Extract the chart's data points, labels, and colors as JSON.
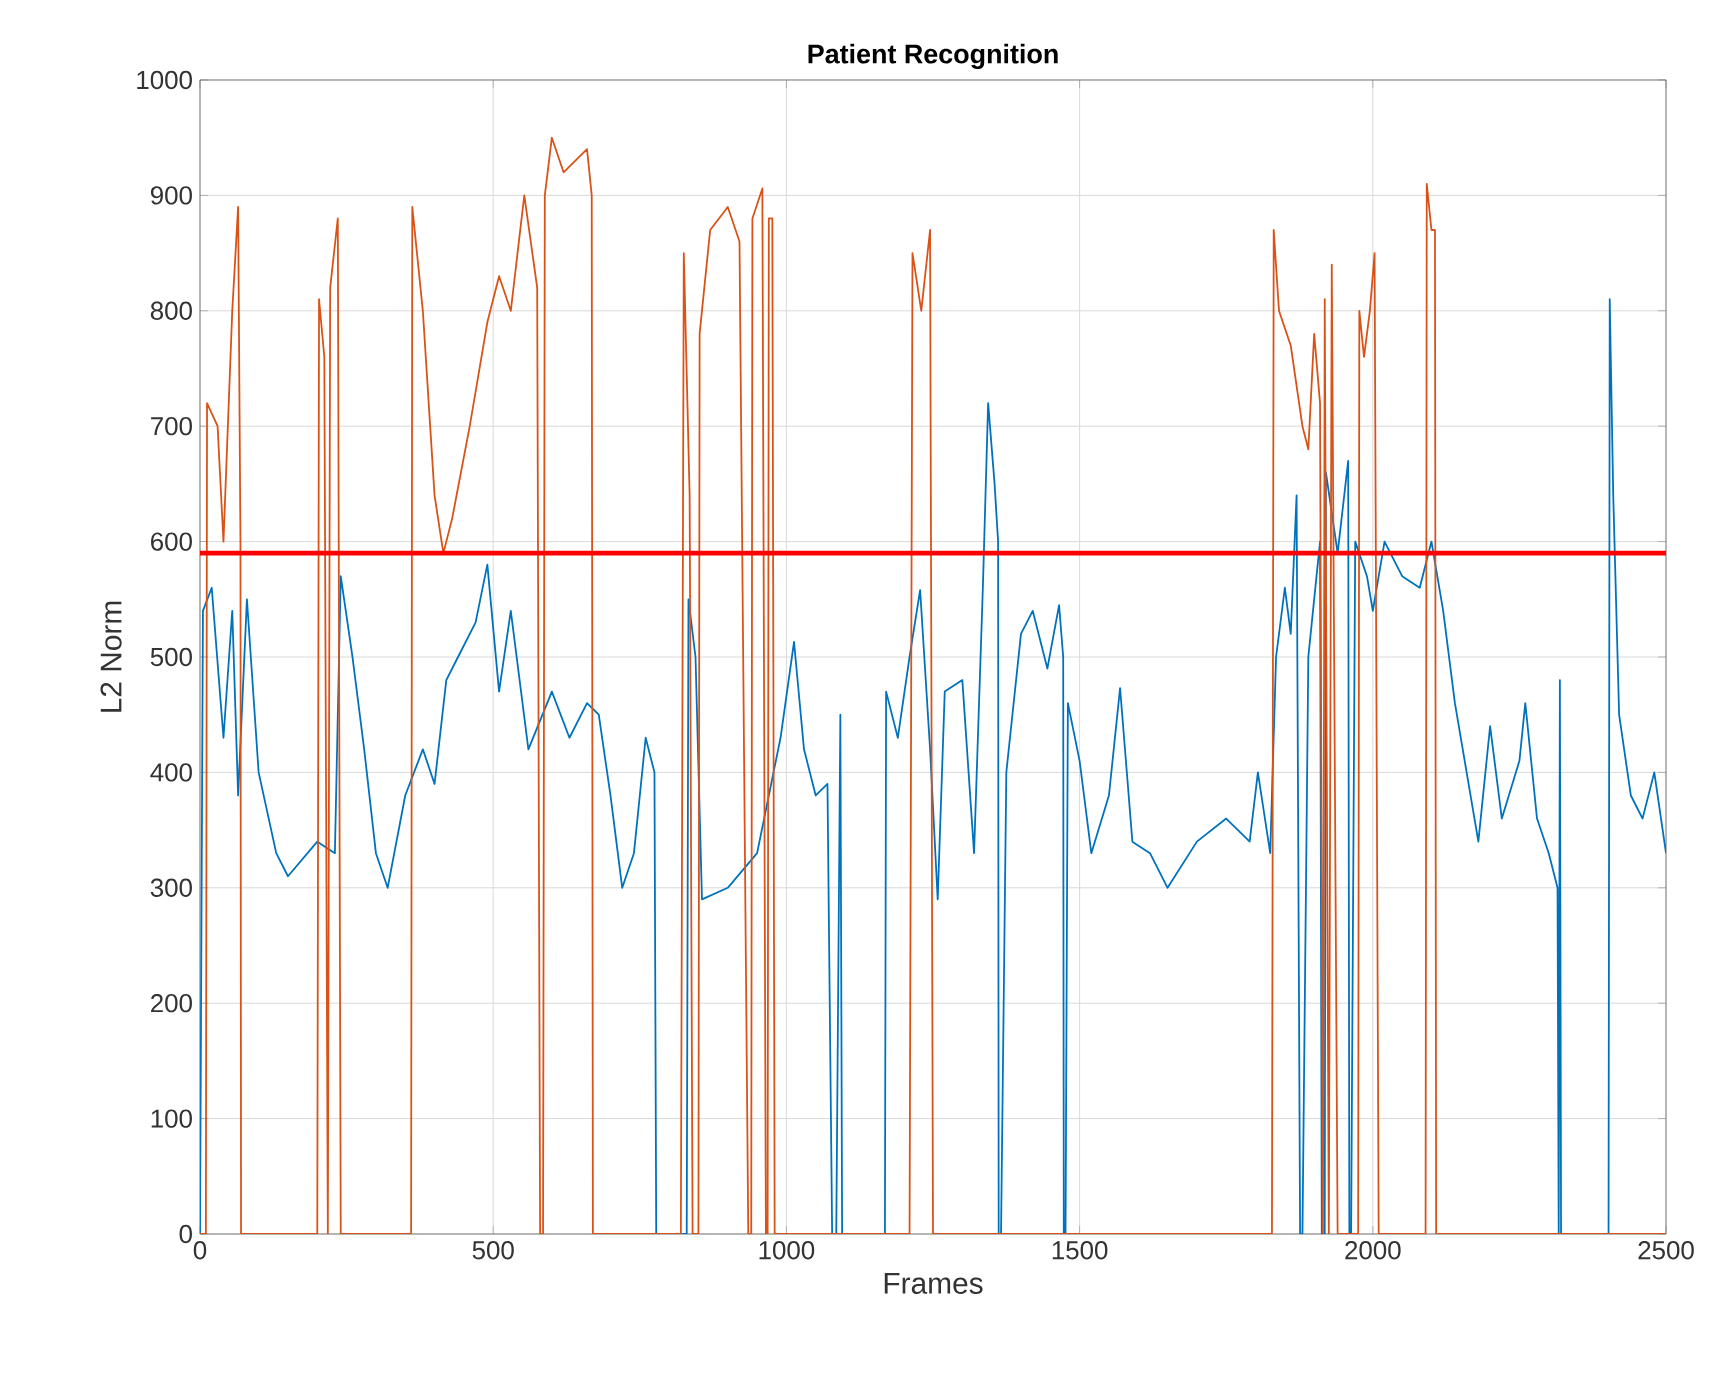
{
  "chart_data": {
    "type": "line",
    "title": "Patient Recognition",
    "xlabel": "Frames",
    "ylabel": "L2 Norm",
    "xlim": [
      0,
      2500
    ],
    "xticks": [
      0,
      500,
      1000,
      1500,
      2000,
      2500
    ],
    "ylim": [
      0,
      1000
    ],
    "yticks": [
      0,
      100,
      200,
      300,
      400,
      500,
      600,
      700,
      800,
      900,
      1000
    ],
    "grid": true,
    "marker": "none",
    "line_style": "solid",
    "ref_lines": [
      {
        "axis": "y",
        "value": 590,
        "label": null,
        "color": "#ff0000"
      }
    ],
    "series": [
      {
        "color": "#0072bd",
        "x": [
          0,
          5,
          20,
          40,
          55,
          65,
          80,
          100,
          130,
          150,
          200,
          230,
          240,
          260,
          280,
          300,
          320,
          350,
          380,
          400,
          420,
          440,
          470,
          490,
          510,
          530,
          560,
          600,
          630,
          660,
          680,
          700,
          720,
          740,
          760,
          775,
          778,
          830,
          833,
          845,
          856,
          900,
          950,
          990,
          1013,
          1030,
          1050,
          1070,
          1078,
          1085,
          1092,
          1095,
          1168,
          1170,
          1190,
          1210,
          1228,
          1245,
          1258,
          1270,
          1300,
          1320,
          1335,
          1344,
          1355,
          1361,
          1362,
          1366,
          1375,
          1400,
          1420,
          1445,
          1465,
          1472,
          1473,
          1476,
          1480,
          1500,
          1520,
          1550,
          1569,
          1590,
          1620,
          1650,
          1700,
          1750,
          1790,
          1804,
          1825,
          1835,
          1850,
          1860,
          1870,
          1876,
          1880,
          1890,
          1910,
          1913,
          1918,
          1920,
          1940,
          1958,
          1960,
          1963,
          1970,
          1990,
          2000,
          2020,
          2050,
          2080,
          2100,
          2120,
          2140,
          2160,
          2180,
          2200,
          2220,
          2250,
          2260,
          2280,
          2300,
          2315,
          2317,
          2319,
          2321,
          2402,
          2404,
          2410,
          2420,
          2440,
          2460,
          2480,
          2500
        ],
        "values": [
          0,
          540,
          560,
          430,
          540,
          380,
          550,
          400,
          330,
          310,
          340,
          330,
          570,
          500,
          420,
          330,
          300,
          380,
          420,
          390,
          480,
          500,
          530,
          580,
          470,
          540,
          420,
          470,
          430,
          460,
          450,
          380,
          300,
          330,
          430,
          400,
          0,
          0,
          550,
          500,
          290,
          300,
          330,
          430,
          513,
          420,
          380,
          390,
          0,
          0,
          450,
          0,
          0,
          470,
          430,
          500,
          558,
          420,
          290,
          470,
          480,
          330,
          560,
          720,
          650,
          600,
          0,
          0,
          400,
          520,
          540,
          490,
          545,
          500,
          0,
          0,
          460,
          410,
          330,
          380,
          473,
          340,
          330,
          300,
          340,
          360,
          340,
          400,
          330,
          500,
          560,
          520,
          640,
          0,
          0,
          500,
          600,
          0,
          0,
          660,
          590,
          670,
          0,
          0,
          600,
          570,
          540,
          600,
          570,
          560,
          600,
          540,
          460,
          400,
          340,
          440,
          360,
          410,
          460,
          360,
          330,
          300,
          0,
          480,
          0,
          0,
          810,
          640,
          450,
          380,
          360,
          400,
          330
        ]
      },
      {
        "color": "#d95319",
        "x": [
          0,
          10,
          12,
          30,
          40,
          55,
          65,
          69,
          70,
          200,
          203,
          212,
          218,
          222,
          235,
          240,
          360,
          362,
          380,
          400,
          415,
          430,
          460,
          490,
          510,
          530,
          553,
          575,
          580,
          585,
          588,
          600,
          620,
          640,
          660,
          668,
          670,
          820,
          825,
          835,
          840,
          850,
          852,
          870,
          900,
          920,
          935,
          940,
          942,
          959,
          965,
          968,
          970,
          976,
          980,
          1210,
          1215,
          1230,
          1245,
          1250,
          1828,
          1831,
          1840,
          1860,
          1880,
          1890,
          1900,
          1910,
          1915,
          1918,
          1925,
          1930,
          1940,
          1975,
          1977,
          1985,
          1995,
          2003,
          2010,
          2090,
          2092,
          2100,
          2106,
          2108,
          2500
        ],
        "values": [
          0,
          0,
          720,
          700,
          600,
          800,
          890,
          600,
          0,
          0,
          810,
          760,
          0,
          820,
          880,
          0,
          0,
          890,
          800,
          640,
          590,
          620,
          700,
          790,
          830,
          800,
          900,
          820,
          0,
          0,
          900,
          950,
          920,
          930,
          940,
          900,
          0,
          0,
          850,
          640,
          0,
          0,
          780,
          870,
          890,
          860,
          0,
          0,
          880,
          906,
          0,
          0,
          880,
          880,
          0,
          0,
          850,
          800,
          870,
          0,
          0,
          870,
          800,
          770,
          700,
          680,
          780,
          720,
          0,
          810,
          0,
          840,
          0,
          0,
          800,
          760,
          800,
          850,
          0,
          0,
          910,
          870,
          870,
          0,
          0
        ]
      }
    ]
  }
}
